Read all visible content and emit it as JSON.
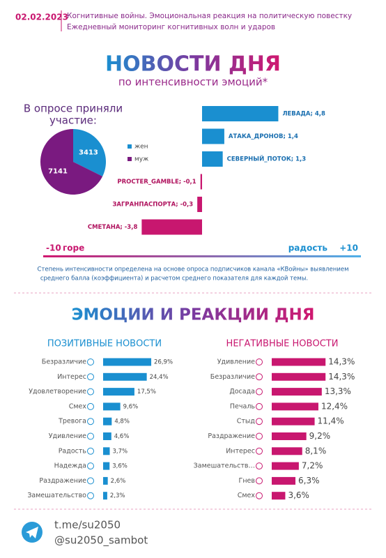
{
  "header": {
    "date": "02.02.2023",
    "line1": "Когнитивные войны. Эмоциональная реакция на политическую повестку",
    "line2": "Ежедневный мониторинг когнитивных волн и ударов"
  },
  "title": "НОВОСТИ ДНЯ",
  "subtitle": "по интенсивности эмоций*",
  "note": [
    "Степень интенсивности определена на основе опроса подписчиков канала «КВойны» выявлением",
    "среднего балла (коэффициента) и расчетом среднего показателя для каждой темы."
  ],
  "section_title": "ЭМОЦИИ И РЕАКЦИИ ДНЯ",
  "footer": [
    "t.me/su2050",
    "@su2050_sambot"
  ],
  "chart_data": [
    {
      "type": "pie",
      "title": [
        "В опросе приняли",
        "участие:"
      ],
      "categories": [
        "жен",
        "муж"
      ],
      "values": [
        3413,
        7141
      ],
      "colors": [
        "#1a8fd0",
        "#7a1a80"
      ]
    },
    {
      "type": "bar",
      "orientation": "horizontal",
      "diverging": true,
      "values": [
        4.8,
        1.4,
        1.3,
        -0.1,
        -0.3,
        -3.8
      ],
      "value_labels": [
        "ЛЕВАДА; 4,8",
        "АТАКА_ДРОНОВ; 1,4",
        "СЕВЕРНЫЙ_ПОТОК; 1,3",
        "PROCTER_GAMBLE; -0,1",
        "ЗАГРАНПАСПОРТА; -0,3",
        "СМЕТАНА; -3,8"
      ],
      "color": "#1a8fd0",
      "negative_color": "#c8176f",
      "xlim": [
        -10,
        10
      ],
      "xticks": [
        {
          "value": -10,
          "label": "-10"
        },
        {
          "value": 10,
          "label": "+10"
        }
      ],
      "low_label": "горе",
      "high_label": "радость"
    },
    {
      "type": "bar",
      "orientation": "horizontal",
      "title": "ПОЗИТИВНЫЕ НОВОСТИ",
      "color": "#1a8fd0",
      "categories": [
        "Безразличие",
        "Интерес",
        "Удовлетворение",
        "Смех",
        "Тревога",
        "Удивление",
        "Радость",
        "Надежда",
        "Раздражение",
        "Замешательство"
      ],
      "values": [
        26.9,
        24.4,
        17.5,
        9.6,
        4.8,
        4.6,
        3.7,
        3.6,
        2.6,
        2.3
      ],
      "value_labels": [
        "26,9%",
        "24,4%",
        "17,5%",
        "9,6%",
        "4,8%",
        "4,6%",
        "3,7%",
        "3,6%",
        "2,6%",
        "2,3%"
      ],
      "xlim": [
        0,
        30
      ]
    },
    {
      "type": "bar",
      "orientation": "horizontal",
      "title": "НЕГАТИВНЫЕ НОВОСТИ",
      "color": "#c8176f",
      "categories": [
        "Удивление",
        "Безразличие",
        "Досада",
        "Печаль",
        "Стыд",
        "Раздражение",
        "Интерес",
        "Замешательств…",
        "Гнев",
        "Смех"
      ],
      "values": [
        14.3,
        14.3,
        13.3,
        12.4,
        11.4,
        9.2,
        8.1,
        7.2,
        6.3,
        3.6
      ],
      "value_labels": [
        "14,3%",
        "14,3%",
        "13,3%",
        "12,4%",
        "11,4%",
        "9,2%",
        "8,1%",
        "7,2%",
        "6,3%",
        "3,6%"
      ],
      "xlim": [
        0,
        15
      ]
    }
  ]
}
